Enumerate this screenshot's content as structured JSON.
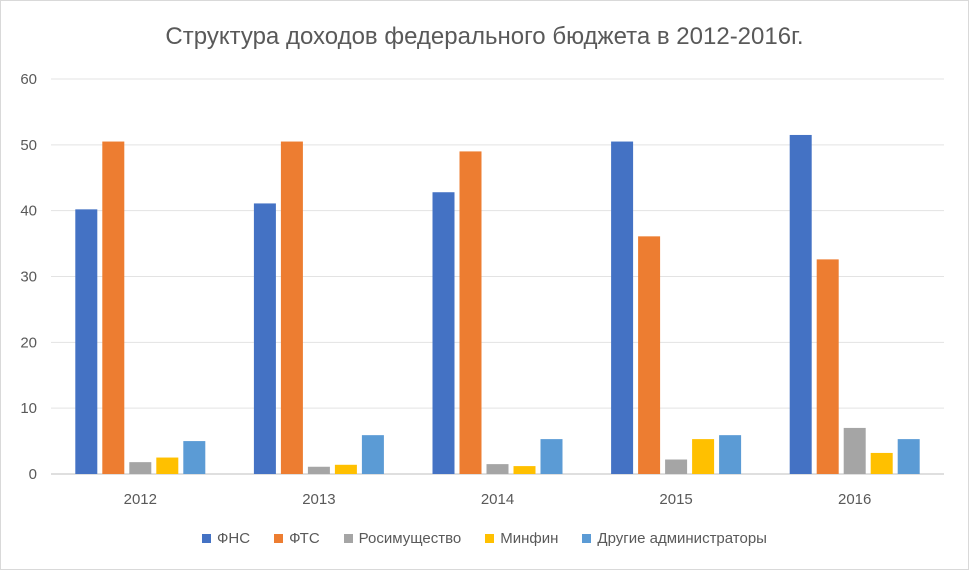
{
  "chart_data": {
    "type": "bar",
    "title": "Структура доходов федерального бюджета в 2012-2016г.",
    "categories": [
      "2012",
      "2013",
      "2014",
      "2015",
      "2016"
    ],
    "series": [
      {
        "name": "ФНС",
        "color": "#4472c4",
        "values": [
          40.2,
          41.1,
          42.8,
          50.5,
          51.5
        ]
      },
      {
        "name": "ФТС",
        "color": "#ed7d31",
        "values": [
          50.5,
          50.5,
          49.0,
          36.1,
          32.6
        ]
      },
      {
        "name": "Росимущество",
        "color": "#a5a5a5",
        "values": [
          1.8,
          1.1,
          1.5,
          2.2,
          7.0
        ]
      },
      {
        "name": "Минфин",
        "color": "#ffc000",
        "values": [
          2.5,
          1.4,
          1.2,
          5.3,
          3.2
        ]
      },
      {
        "name": "Другие администраторы",
        "color": "#5b9bd5",
        "values": [
          5.0,
          5.9,
          5.3,
          5.9,
          5.3
        ]
      }
    ],
    "ylim": [
      0,
      60
    ],
    "yticks": [
      "0",
      "10",
      "20",
      "30",
      "40",
      "50",
      "60"
    ],
    "grid": true,
    "legend_position": "bottom"
  }
}
